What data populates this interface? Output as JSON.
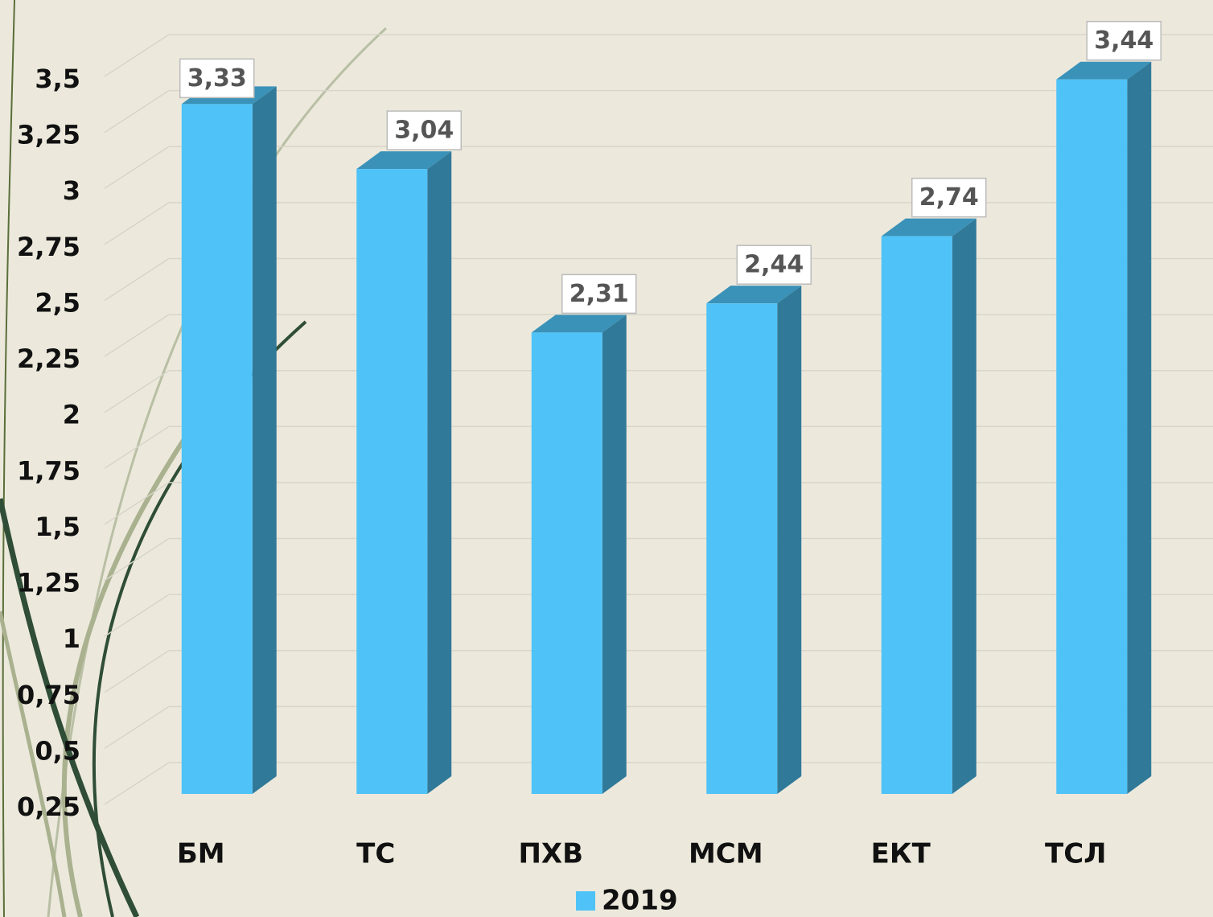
{
  "chart_data": {
    "type": "bar3d",
    "categories": [
      "БМ",
      "ТС",
      "ПХВ",
      "МСМ",
      "ЕКТ",
      "ТСЛ"
    ],
    "series": [
      {
        "name": "2019",
        "color": "#4fc3f7",
        "values": [
          3.33,
          3.04,
          2.31,
          2.44,
          2.74,
          3.44
        ],
        "value_labels": [
          "3,33",
          "3,04",
          "2,31",
          "2,44",
          "2,74",
          "3,44"
        ]
      }
    ],
    "ylim": [
      0.25,
      3.5
    ],
    "yticks": [
      {
        "value": 0.25,
        "label": "0,25"
      },
      {
        "value": 0.5,
        "label": "0,5"
      },
      {
        "value": 0.75,
        "label": "0,75"
      },
      1,
      {
        "value": 1.25,
        "label": "1,25"
      },
      {
        "value": 1.5,
        "label": "1,5"
      },
      {
        "value": 1.75,
        "label": "1,75"
      },
      2,
      {
        "value": 2.25,
        "label": "2,25"
      },
      {
        "value": 2.5,
        "label": "2,5"
      },
      {
        "value": 2.75,
        "label": "2,75"
      },
      3,
      {
        "value": 3.25,
        "label": "3,25"
      },
      {
        "value": 3.5,
        "label": "3,5"
      }
    ],
    "grid": true
  }
}
